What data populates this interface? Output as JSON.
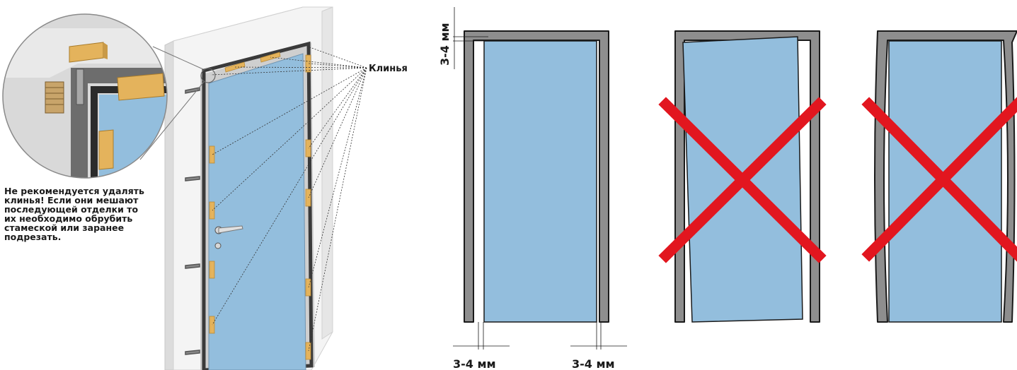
{
  "labels": {
    "wedges": "Клинья",
    "gap_top": "3-4 мм",
    "gap_bottom_left": "3-4 мм",
    "gap_bottom_right": "3-4 мм"
  },
  "note": "Не рекомендуется удалять\nклинья! Если они мешают\nпоследующей отделки то\nих необходимо обрубить\nстамеской или заранее\nподрезать.",
  "colors": {
    "door_leaf": "#93bedd",
    "frame": "#8e8e8e",
    "wedge": "#e4b35c",
    "cross": "#e2161f"
  },
  "panels": [
    {
      "state": "correct"
    },
    {
      "state": "incorrect-skewed-leaf"
    },
    {
      "state": "incorrect-bowed-frame"
    }
  ]
}
